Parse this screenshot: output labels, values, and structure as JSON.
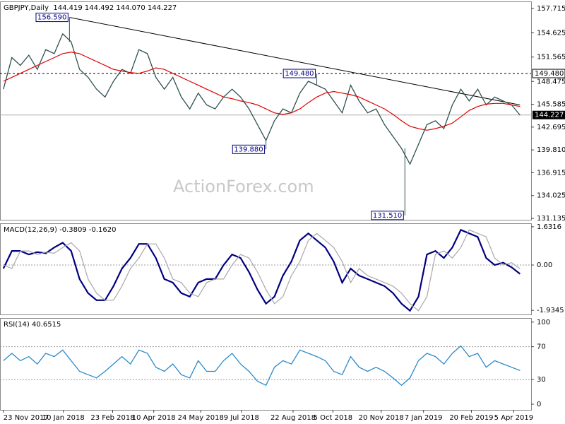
{
  "chart_data": [
    {
      "type": "line",
      "title": "GBPJPY,Daily  144.419 144.492 144.070 144.227",
      "watermark": "ActionForex.com",
      "ylim": [
        130.96,
        158.61
      ],
      "yticks": [
        157.715,
        154.625,
        151.565,
        148.475,
        145.585,
        142.695,
        {
          "value": 139.81,
          "label": "139.810"
        },
        136.915,
        134.025,
        131.135
      ],
      "series": [
        {
          "color": "#2f4f4f",
          "values": [
            147.5,
            151.5,
            150.5,
            151.8,
            150.0,
            152.5,
            152.0,
            154.5,
            153.5,
            150.0,
            149.0,
            147.5,
            146.5,
            148.5,
            150.0,
            149.5,
            152.5,
            152.0,
            149.0,
            147.5,
            149.0,
            146.5,
            145.0,
            147.0,
            145.5,
            145.0,
            146.5,
            147.5,
            146.5,
            145.0,
            143.0,
            141.0,
            143.5,
            145.0,
            144.5,
            147.0,
            148.5,
            148.0,
            147.5,
            146.0,
            144.5,
            148.0,
            146.0,
            144.5,
            145.0,
            143.0,
            141.5,
            140.0,
            138.0,
            140.5,
            143.0,
            143.5,
            142.5,
            145.5,
            147.5,
            146.0,
            147.5,
            145.5,
            146.5,
            146.0,
            145.5,
            144.2
          ]
        },
        {
          "color": "#e00000",
          "values": [
            148.5,
            149.0,
            149.5,
            150.0,
            150.5,
            151.0,
            151.5,
            152.0,
            152.2,
            152.0,
            151.5,
            151.0,
            150.5,
            150.0,
            149.8,
            149.6,
            149.5,
            149.8,
            150.2,
            150.0,
            149.5,
            149.0,
            148.5,
            148.0,
            147.5,
            147.0,
            146.5,
            146.3,
            146.0,
            145.8,
            145.5,
            145.0,
            144.5,
            144.3,
            144.5,
            145.0,
            145.8,
            146.5,
            147.0,
            147.2,
            147.0,
            146.8,
            146.5,
            146.0,
            145.5,
            145.0,
            144.3,
            143.5,
            142.8,
            142.5,
            142.3,
            142.5,
            142.8,
            143.2,
            144.0,
            144.8,
            145.3,
            145.6,
            145.7,
            145.7,
            145.5,
            145.3
          ]
        }
      ],
      "trendline": {
        "x": [
          7.8,
          61.0
        ],
        "y": [
          156.59,
          145.5
        ]
      },
      "resistance": {
        "value": 149.48,
        "label": "149.480"
      },
      "last_price": 144.227,
      "annotations": [
        {
          "label": "156.590",
          "x": 7.8,
          "y": 156.59
        },
        {
          "label": "149.480",
          "x": 37.0,
          "y": 149.48
        },
        {
          "label": "139.880",
          "x": 31.0,
          "y": 139.88
        },
        {
          "label": "131.510",
          "x": 47.4,
          "y": 131.51
        }
      ]
    },
    {
      "type": "line",
      "title": "MACD(12,26,9) -0.3809 -0.1620",
      "ylim": [
        -2.11,
        1.78
      ],
      "yticks": [
        1.6316,
        {
          "value": 0,
          "label": "0.00"
        },
        -1.9345
      ],
      "zero_line": true,
      "series": [
        {
          "color": "#000080",
          "values": [
            -0.15,
            0.6,
            0.6,
            0.45,
            0.55,
            0.5,
            0.75,
            0.95,
            0.6,
            -0.6,
            -1.2,
            -1.5,
            -1.5,
            -0.9,
            -0.15,
            0.3,
            0.9,
            0.9,
            0.3,
            -0.6,
            -0.75,
            -1.2,
            -1.35,
            -0.75,
            -0.6,
            -0.6,
            0,
            0.45,
            0.3,
            -0.3,
            -1.05,
            -1.65,
            -1.35,
            -0.45,
            0.15,
            1.05,
            1.35,
            1.05,
            0.75,
            0.15,
            -0.75,
            -0.15,
            -0.45,
            -0.6,
            -0.75,
            -0.9,
            -1.2,
            -1.65,
            -1.95,
            -1.35,
            0.45,
            0.6,
            0.3,
            0.75,
            1.5,
            1.35,
            1.2,
            0.3,
            0,
            0.1,
            -0.1,
            -0.38
          ]
        },
        {
          "color": "#a8a8a8",
          "values": [
            0,
            -0.15,
            0.6,
            0.6,
            0.45,
            0.55,
            0.5,
            0.75,
            0.95,
            0.6,
            -0.6,
            -1.2,
            -1.5,
            -1.5,
            -0.9,
            -0.15,
            0.3,
            0.9,
            0.9,
            0.3,
            -0.6,
            -0.75,
            -1.2,
            -1.35,
            -0.75,
            -0.6,
            -0.6,
            0,
            0.45,
            0.3,
            -0.3,
            -1.05,
            -1.65,
            -1.35,
            -0.45,
            0.15,
            1.05,
            1.35,
            1.05,
            0.75,
            0.15,
            -0.75,
            -0.15,
            -0.45,
            -0.6,
            -0.75,
            -0.9,
            -1.2,
            -1.65,
            -1.95,
            -1.35,
            0.45,
            0.6,
            0.3,
            0.75,
            1.5,
            1.35,
            1.2,
            0.3,
            0,
            0.1,
            -0.16
          ]
        }
      ]
    },
    {
      "type": "line",
      "title": "RSI(14) 40.6515",
      "ylim": [
        -6.9,
        105
      ],
      "yticks": [
        100,
        70,
        30,
        0
      ],
      "levels": [
        70,
        30
      ],
      "series": [
        {
          "color": "#2a8ac8",
          "values": [
            53,
            62,
            53,
            58,
            49,
            62,
            58,
            66,
            53,
            40,
            36,
            32,
            40,
            49,
            58,
            49,
            66,
            62,
            45,
            40,
            49,
            36,
            32,
            53,
            40,
            40,
            53,
            62,
            49,
            40,
            28,
            23,
            45,
            53,
            49,
            66,
            62,
            58,
            53,
            40,
            36,
            58,
            45,
            40,
            45,
            40,
            32,
            23,
            32,
            53,
            62,
            58,
            49,
            62,
            71,
            58,
            62,
            45,
            53,
            49,
            45,
            41
          ]
        }
      ],
      "xlim": [
        -0.4,
        62.3
      ],
      "xticks": [
        {
          "value": 0,
          "label": "23 Nov 2017"
        },
        {
          "value": 7.08,
          "label": "10 Jan 2018"
        },
        {
          "value": 12.9,
          "label": "23 Feb 2018"
        },
        {
          "value": 17.75,
          "label": "10 Apr 2018"
        },
        {
          "value": 23.3,
          "label": "24 May 2018"
        },
        {
          "value": 28.1,
          "label": "9 Jul 2018"
        },
        {
          "value": 34.2,
          "label": "22 Aug 2018"
        },
        {
          "value": 38.9,
          "label": "5 Oct 2018"
        },
        {
          "value": 44.6,
          "label": "20 Nov 2018"
        },
        {
          "value": 49.6,
          "label": "7 Jan 2019"
        },
        {
          "value": 55.25,
          "label": "20 Feb 2019"
        },
        {
          "value": 60.25,
          "label": "5 Apr 2019"
        }
      ]
    }
  ]
}
